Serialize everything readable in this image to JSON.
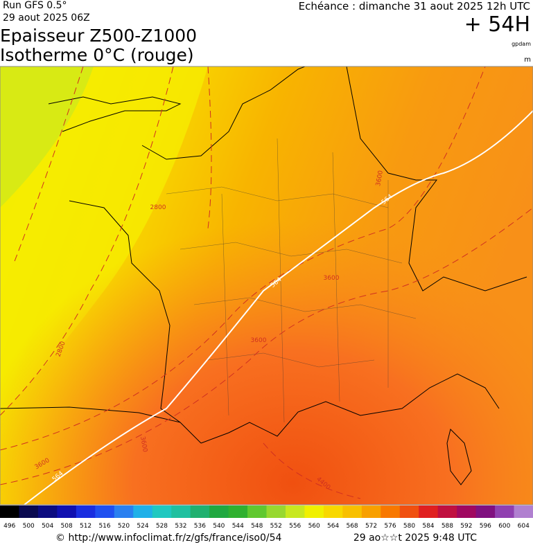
{
  "header": {
    "run": "Run GFS 0.5°",
    "run_date": "29 aout 2025 06Z",
    "valid": "Echéance : dimanche 31 aout 2025 12h UTC",
    "lead": "+ 54H",
    "title_line1": "Epaisseur Z500-Z1000",
    "title_line2": "Isotherme 0°C (rouge)",
    "unit_thickness": "gpdam",
    "unit_iso": "m"
  },
  "map": {
    "contour_labels": [
      "2800",
      "2800",
      "3600",
      "3600",
      "3600",
      "3600",
      "3600",
      "4400",
      "564",
      "564",
      "564"
    ]
  },
  "colorbar": {
    "labels": [
      "496",
      "500",
      "504",
      "508",
      "512",
      "516",
      "520",
      "524",
      "528",
      "532",
      "536",
      "540",
      "544",
      "548",
      "552",
      "556",
      "560",
      "564",
      "568",
      "572",
      "576",
      "580",
      "584",
      "588",
      "592",
      "596",
      "600",
      "604"
    ],
    "colors": [
      "#000000",
      "#0a0a50",
      "#0c0c80",
      "#1010b0",
      "#1a2ee0",
      "#2050f0",
      "#2a80f0",
      "#20b0e8",
      "#20c8c0",
      "#20c0a0",
      "#20b070",
      "#20a840",
      "#30b030",
      "#60c830",
      "#98d830",
      "#c8e820",
      "#f0f000",
      "#f8d800",
      "#f8c000",
      "#f8a000",
      "#f87800",
      "#f05010",
      "#e02020",
      "#c01040",
      "#a00860",
      "#801080",
      "#9040b0",
      "#b080d0"
    ]
  },
  "footer": {
    "url": "© http://www.infoclimat.fr/z/gfs/france/iso0/54",
    "timestamp": "29 ao☆☆t 2025  9:48 UTC"
  }
}
